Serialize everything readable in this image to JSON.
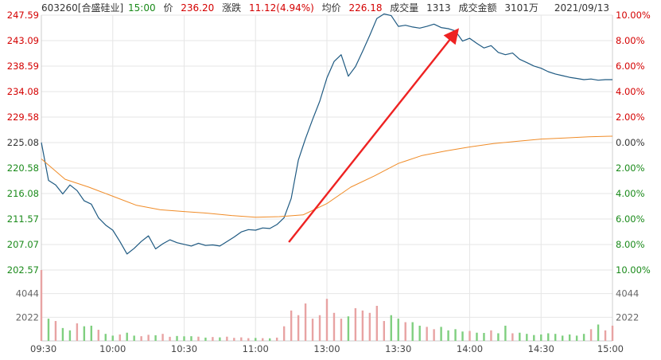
{
  "header": {
    "stock": "603260[合盛硅业]",
    "time": "15:00",
    "price_label": "价",
    "price": "236.20",
    "change_label": "涨跌",
    "change": "11.12(4.94%)",
    "avg_label": "均价",
    "avg": "226.18",
    "volume_label": "成交量",
    "volume": "1313",
    "amount_label": "成交金额",
    "amount": "3101万",
    "date": "2021/09/13"
  },
  "colors": {
    "price_line": "#1f5a82",
    "avg_line": "#f08c28",
    "up": "#d40000",
    "down": "#1a8a1a",
    "neutral": "#333333",
    "arrow": "#ee2222",
    "grid": "#e6e6e6",
    "vol_up": "#e8a3a3",
    "vol_down": "#7fcf7f"
  },
  "chart_data": [
    {
      "type": "line",
      "title": "",
      "prev_close": 225.08,
      "ylim": [
        202.57,
        247.59
      ],
      "y_ticks_left": [
        "247.59",
        "243.09",
        "238.59",
        "234.08",
        "229.58",
        "225.08",
        "220.58",
        "216.08",
        "211.57",
        "207.07",
        "202.57"
      ],
      "y_ticks_right": [
        "10.00%",
        "8.00%",
        "6.00%",
        "4.00%",
        "2.00%",
        "0.00%",
        "2.00%",
        "4.00%",
        "6.00%",
        "8.00%",
        "10.00%"
      ],
      "x_ticks": [
        "09:30",
        "10:00",
        "10:30",
        "11:00",
        "13:00",
        "13:30",
        "14:00",
        "14:30",
        "15:00"
      ],
      "series": [
        {
          "role": "price",
          "x": [
            0,
            3,
            6,
            9,
            12,
            15,
            18,
            21,
            24,
            27,
            30,
            33,
            36,
            39,
            42,
            45,
            48,
            51,
            54,
            57,
            60,
            63,
            66,
            69,
            72,
            75,
            78,
            81,
            84,
            87,
            90,
            93,
            96,
            99,
            102,
            105,
            108,
            111,
            114,
            117,
            120,
            123,
            126,
            129,
            132,
            135,
            138,
            141,
            144,
            147,
            150,
            153,
            156,
            159,
            162,
            165,
            168,
            171,
            174,
            177,
            180,
            183,
            186,
            189,
            192,
            195,
            198,
            201,
            204,
            207,
            210,
            213,
            216,
            219,
            222,
            225,
            228,
            231,
            234,
            237,
            240
          ],
          "values": [
            225.1,
            218.4,
            217.6,
            216.0,
            217.6,
            216.6,
            214.8,
            214.2,
            211.8,
            210.5,
            209.6,
            207.6,
            205.4,
            206.4,
            207.6,
            208.6,
            206.3,
            207.2,
            207.9,
            207.4,
            207.1,
            206.8,
            207.3,
            206.9,
            207.0,
            206.8,
            207.6,
            208.4,
            209.3,
            209.7,
            209.6,
            210.0,
            209.9,
            210.6,
            211.8,
            215.2,
            222.0,
            225.8,
            229.2,
            232.4,
            236.5,
            239.4,
            240.6,
            236.8,
            238.5,
            241.2,
            244.0,
            247.0,
            247.8,
            247.5,
            245.6,
            245.8,
            245.5,
            245.3,
            245.6,
            246.0,
            245.4,
            245.2,
            244.8,
            243.0,
            243.5,
            242.6,
            241.8,
            242.2,
            241.0,
            240.6,
            240.9,
            239.8,
            239.2,
            238.6,
            238.2,
            237.6,
            237.2,
            236.9,
            236.6,
            236.4,
            236.2,
            236.3,
            236.1,
            236.2,
            236.2
          ]
        },
        {
          "role": "avg",
          "x": [
            0,
            10,
            20,
            30,
            40,
            50,
            60,
            70,
            80,
            90,
            100,
            110,
            120,
            130,
            140,
            150,
            160,
            170,
            180,
            190,
            200,
            210,
            220,
            230,
            240
          ],
          "values": [
            222.2,
            218.6,
            217.2,
            215.6,
            214.0,
            213.2,
            212.9,
            212.6,
            212.2,
            211.9,
            212.0,
            212.3,
            214.3,
            217.2,
            219.2,
            221.4,
            222.8,
            223.6,
            224.3,
            224.9,
            225.3,
            225.7,
            225.9,
            226.1,
            226.2
          ]
        }
      ]
    },
    {
      "type": "bar",
      "title": "",
      "ylim": [
        0,
        6066
      ],
      "y_ticks": [
        "4044",
        "2022"
      ],
      "x_ticks": [
        "09:30",
        "10:00",
        "10:30",
        "11:00",
        "13:00",
        "13:30",
        "14:00",
        "14:30",
        "15:00"
      ],
      "values": [
        6080,
        1900,
        1700,
        1100,
        900,
        1500,
        1250,
        1300,
        950,
        600,
        450,
        550,
        700,
        450,
        400,
        520,
        480,
        600,
        350,
        420,
        390,
        400,
        360,
        280,
        330,
        300,
        360,
        260,
        300,
        230,
        250,
        230,
        220,
        280,
        1250,
        2600,
        2200,
        3200,
        1900,
        2200,
        3600,
        2400,
        1900,
        2100,
        2800,
        2600,
        2400,
        3000,
        1700,
        2200,
        1900,
        1600,
        1600,
        1300,
        1200,
        1000,
        1200,
        900,
        1000,
        800,
        850,
        700,
        680,
        900,
        650,
        1300,
        650,
        700,
        600,
        500,
        550,
        650,
        600,
        450,
        550,
        450,
        600,
        1000,
        1400,
        900,
        1300
      ],
      "direction": [
        "u",
        "d",
        "u",
        "d",
        "d",
        "u",
        "d",
        "d",
        "u",
        "d",
        "d",
        "u",
        "d",
        "d",
        "u",
        "u",
        "d",
        "u",
        "u",
        "d",
        "d",
        "d",
        "u",
        "d",
        "u",
        "d",
        "u",
        "u",
        "u",
        "u",
        "d",
        "u",
        "d",
        "u",
        "u",
        "u",
        "u",
        "u",
        "u",
        "u",
        "u",
        "u",
        "u",
        "d",
        "u",
        "u",
        "u",
        "u",
        "u",
        "d",
        "d",
        "u",
        "d",
        "d",
        "u",
        "u",
        "d",
        "d",
        "d",
        "d",
        "u",
        "d",
        "d",
        "u",
        "d",
        "d",
        "u",
        "d",
        "d",
        "d",
        "d",
        "d",
        "d",
        "d",
        "d",
        "d",
        "d",
        "u",
        "d",
        "u",
        "u"
      ]
    }
  ]
}
